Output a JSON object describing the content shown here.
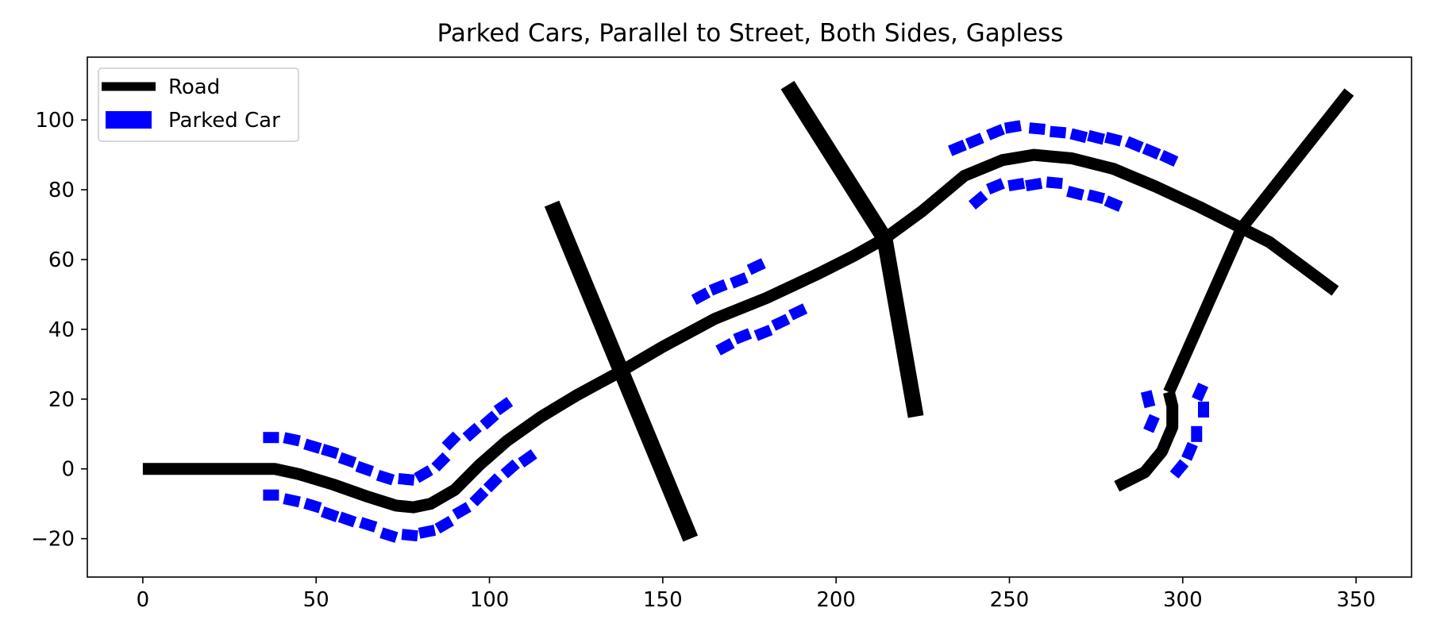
{
  "chart_data": {
    "type": "line",
    "title": "Parked Cars, Parallel to Street, Both Sides, Gapless",
    "xlabel": "",
    "ylabel": "",
    "xlim": [
      -16,
      366
    ],
    "ylim": [
      -31,
      118
    ],
    "xticks": [
      0,
      50,
      100,
      150,
      200,
      250,
      300,
      350
    ],
    "yticks": [
      -20,
      0,
      20,
      40,
      60,
      80,
      100
    ],
    "grid": false,
    "legend": {
      "placement": "top-left",
      "entries": [
        {
          "label": "Road",
          "color": "#000000",
          "marker": "line"
        },
        {
          "label": "Parked Car",
          "color": "#0000ff",
          "marker": "patch"
        }
      ]
    },
    "roads": [
      {
        "width": 3,
        "points": [
          [
            0,
            0
          ],
          [
            38,
            0
          ],
          [
            45,
            -1.5
          ],
          [
            55,
            -4.5
          ],
          [
            65,
            -8
          ],
          [
            73,
            -10.5
          ],
          [
            78,
            -11
          ],
          [
            83,
            -10
          ],
          [
            90,
            -6
          ],
          [
            97,
            1
          ],
          [
            105,
            8
          ],
          [
            115,
            15
          ],
          [
            125,
            21
          ],
          [
            138,
            28
          ],
          [
            150,
            35
          ],
          [
            165,
            43
          ],
          [
            180,
            49
          ],
          [
            195,
            56
          ],
          [
            205,
            61
          ],
          [
            214,
            66
          ],
          [
            225,
            74
          ],
          [
            237,
            84
          ],
          [
            248,
            88.5
          ],
          [
            257,
            90
          ],
          [
            268,
            89
          ],
          [
            280,
            86
          ],
          [
            292,
            81
          ],
          [
            305,
            75
          ],
          [
            317,
            69
          ],
          [
            325,
            65
          ],
          [
            344,
            51
          ]
        ]
      },
      {
        "width": 4,
        "points": [
          [
            118,
            76
          ],
          [
            138,
            28
          ],
          [
            158,
            -20
          ]
        ]
      },
      {
        "width": 4,
        "points": [
          [
            186,
            110
          ],
          [
            214,
            66
          ],
          [
            223,
            15
          ]
        ]
      },
      {
        "width": 3,
        "points": [
          [
            348,
            108
          ],
          [
            317,
            69
          ],
          [
            296,
            22
          ]
        ]
      },
      {
        "width": 3,
        "points": [
          [
            296,
            22
          ],
          [
            297,
            18
          ],
          [
            297,
            12
          ],
          [
            294,
            5
          ],
          [
            289,
            -1
          ],
          [
            281,
            -5
          ]
        ]
      }
    ],
    "cars": [
      [
        37,
        9
      ],
      [
        43,
        8.5
      ],
      [
        49,
        6.5
      ],
      [
        54,
        5
      ],
      [
        59,
        2.5
      ],
      [
        64,
        0
      ],
      [
        70,
        -2.5
      ],
      [
        76,
        -3
      ],
      [
        81,
        -1.5
      ],
      [
        86,
        2
      ],
      [
        89,
        8
      ],
      [
        95,
        10.5
      ],
      [
        100,
        14
      ],
      [
        104,
        18
      ],
      [
        37,
        -7.5
      ],
      [
        43,
        -9
      ],
      [
        49,
        -10.5
      ],
      [
        54,
        -13
      ],
      [
        59,
        -14.5
      ],
      [
        65,
        -16
      ],
      [
        71,
        -19
      ],
      [
        77,
        -19
      ],
      [
        82,
        -18
      ],
      [
        87,
        -16
      ],
      [
        92,
        -12
      ],
      [
        97,
        -8
      ],
      [
        101,
        -4
      ],
      [
        106,
        0
      ],
      [
        111,
        3
      ],
      [
        161,
        49.5
      ],
      [
        166,
        52
      ],
      [
        172,
        54
      ],
      [
        177,
        58
      ],
      [
        168,
        35
      ],
      [
        173,
        38
      ],
      [
        179,
        39
      ],
      [
        184,
        42
      ],
      [
        189,
        45
      ],
      [
        235,
        92
      ],
      [
        240,
        94
      ],
      [
        246,
        96.5
      ],
      [
        251,
        98
      ],
      [
        258,
        97.5
      ],
      [
        264,
        96.5
      ],
      [
        270,
        95.5
      ],
      [
        275,
        95
      ],
      [
        280,
        94.5
      ],
      [
        286,
        93
      ],
      [
        291,
        91
      ],
      [
        296,
        89
      ],
      [
        241,
        77
      ],
      [
        246,
        81
      ],
      [
        252,
        81.5
      ],
      [
        257,
        81.5
      ],
      [
        263,
        82
      ],
      [
        269,
        79
      ],
      [
        275,
        78
      ],
      [
        280,
        76
      ],
      [
        290,
        20
      ],
      [
        291,
        13
      ],
      [
        305,
        22
      ],
      [
        306,
        17
      ],
      [
        304,
        10
      ],
      [
        302,
        5
      ],
      [
        299,
        0
      ]
    ]
  }
}
